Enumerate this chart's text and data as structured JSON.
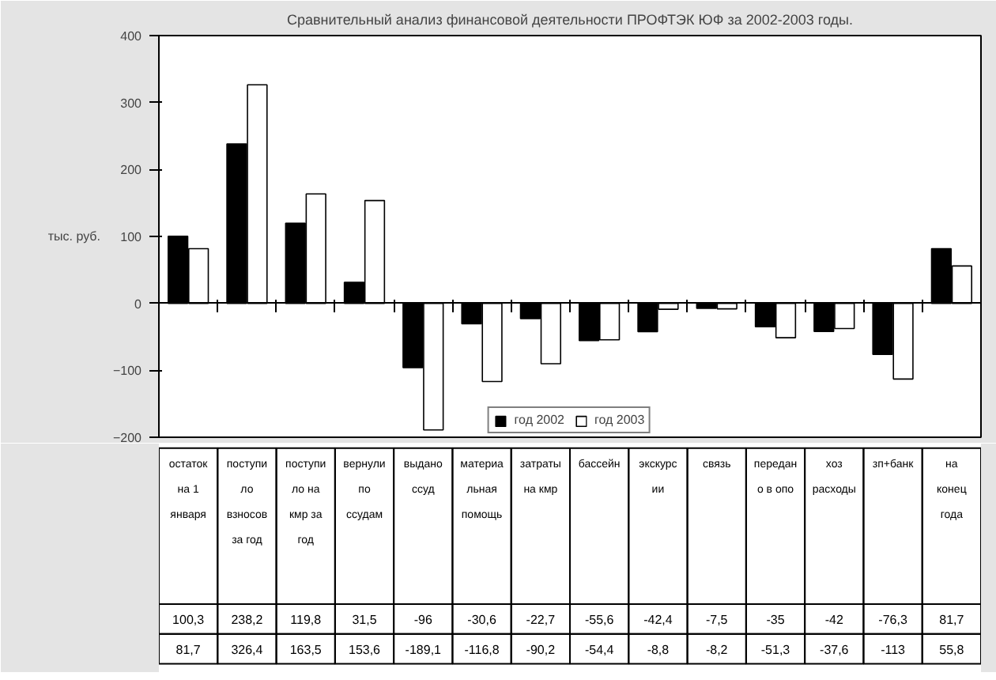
{
  "chart_data": {
    "type": "bar",
    "title": "Сравнительный анализ финансовой деятельности ПРОФТЭК ЮФ за 2002-2003 годы.",
    "ylabel": "тыс. руб.",
    "categories": [
      "остаток на 1 января",
      "поступило взносов за год",
      "поступило на кмр за год",
      "вернули по ссудам",
      "выдано ссуд",
      "материальная помощь",
      "затраты на кмр",
      "бассейн",
      "экскурсии",
      "связь",
      "передано в опо",
      "хоз расходы",
      "зп+банк",
      "на конец года"
    ],
    "series": [
      {
        "name": "год 2002",
        "color": "#000000",
        "values": [
          100.3,
          238.2,
          119.8,
          31.5,
          -96,
          -30.6,
          -22.7,
          -55.6,
          -42.4,
          -7.5,
          -35,
          -42,
          -76.3,
          81.7
        ],
        "value_labels": [
          "100,3",
          "238,2",
          "119,8",
          "31,5",
          "-96",
          "-30,6",
          "-22,7",
          "-55,6",
          "-42,4",
          "-7,5",
          "-35",
          "-42",
          "-76,3",
          "81,7"
        ]
      },
      {
        "name": "год 2003",
        "color": "#ffffff",
        "values": [
          81.7,
          326.4,
          163.5,
          153.6,
          -189.1,
          -116.8,
          -90.2,
          -54.4,
          -8.8,
          -8.2,
          -51.3,
          -37.6,
          -113,
          55.8
        ],
        "value_labels": [
          "81,7",
          "326,4",
          "163,5",
          "153,6",
          "-189,1",
          "-116,8",
          "-90,2",
          "-54,4",
          "-8,8",
          "-8,2",
          "-51,3",
          "-37,6",
          "-113",
          "55,8"
        ]
      }
    ],
    "ylim": [
      -200,
      400
    ],
    "yticks": [
      -200,
      -100,
      0,
      100,
      200,
      300,
      400
    ],
    "legend": "bottom",
    "tick_labels": "y"
  }
}
